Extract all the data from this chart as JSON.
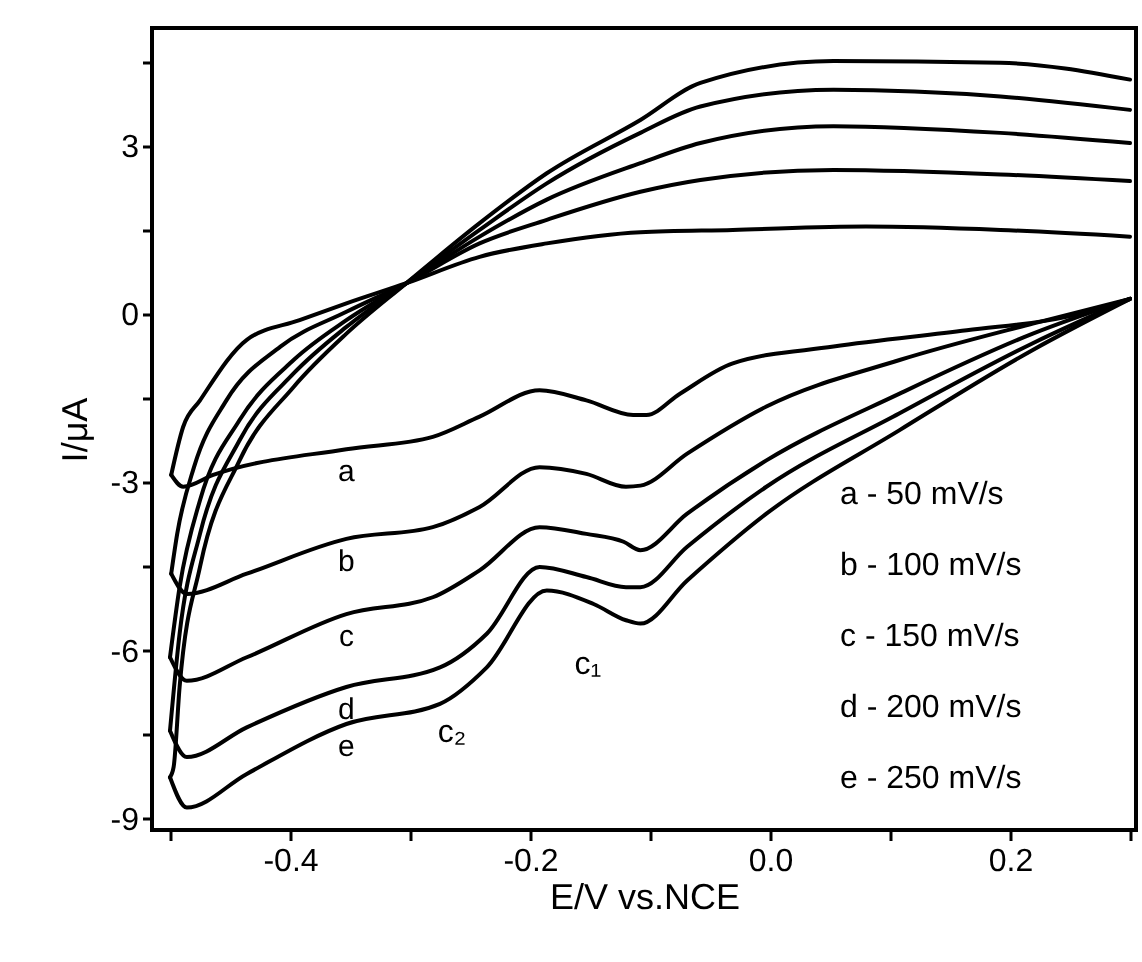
{
  "chart_data": {
    "type": "line",
    "xlabel": "E/V vs.NCE",
    "ylabel": "I/μA",
    "xlim": [
      -0.515,
      0.305
    ],
    "ylim": [
      -9.2,
      5.1
    ],
    "xticks": [
      {
        "value": -0.5,
        "label": null
      },
      -0.4,
      {
        "value": -0.3,
        "label": null
      },
      -0.2,
      {
        "value": -0.1,
        "label": null
      },
      {
        "value": 0,
        "label": "0.0"
      },
      {
        "value": 0.1,
        "label": null
      },
      0.2,
      {
        "value": 0.3,
        "label": null
      }
    ],
    "yticks": [
      -9,
      {
        "value": -7.5,
        "label": null
      },
      -6,
      {
        "value": -4.5,
        "label": null
      },
      -3,
      {
        "value": -1.5,
        "label": null
      },
      0,
      {
        "value": 1.5,
        "label": null
      },
      3,
      {
        "value": 4.5,
        "label": null
      }
    ],
    "series": [
      {
        "name": "a",
        "color": "#000000",
        "x": [
          -0.499,
          -0.489,
          -0.464,
          -0.353,
          -0.281,
          -0.242,
          -0.192,
          -0.153,
          -0.114,
          -0.103,
          -0.075,
          -0.031,
          0.053,
          0.164,
          0.247,
          0.3
        ],
        "values": [
          -2.87,
          -3.08,
          -2.87,
          -2.41,
          -2.19,
          -1.83,
          -1.36,
          -1.54,
          -1.8,
          -1.8,
          -1.42,
          -0.88,
          -0.58,
          -0.29,
          -0.05,
          0.27
        ]
      },
      {
        "color": "#000000",
        "x": [
          -0.499,
          -0.489,
          -0.475,
          -0.436,
          -0.392,
          -0.353,
          -0.303,
          -0.242,
          -0.186,
          -0.108,
          -0.031,
          0.08,
          0.192,
          0.3
        ],
        "values": [
          -2.87,
          -2.01,
          -1.54,
          -0.46,
          -0.11,
          0.19,
          0.55,
          1.02,
          1.26,
          1.46,
          1.5,
          1.56,
          1.5,
          1.38
        ]
      },
      {
        "name": "b",
        "color": "#000000",
        "x": [
          -0.499,
          -0.486,
          -0.436,
          -0.353,
          -0.281,
          -0.242,
          -0.192,
          -0.153,
          -0.12,
          -0.108,
          -0.069,
          -0.003,
          0.108,
          0.219,
          0.3
        ],
        "values": [
          -4.63,
          -4.99,
          -4.63,
          -4.01,
          -3.8,
          -3.44,
          -2.73,
          -2.85,
          -3.08,
          -3.06,
          -2.49,
          -1.65,
          -0.82,
          -0.17,
          0.27
        ]
      },
      {
        "color": "#000000",
        "x": [
          -0.499,
          -0.494,
          -0.48,
          -0.453,
          -0.408,
          -0.353,
          -0.303,
          -0.242,
          -0.186,
          -0.108,
          -0.058,
          0.053,
          0.192,
          0.3
        ],
        "values": [
          -4.63,
          -3.92,
          -2.73,
          -1.54,
          -0.58,
          0.04,
          0.55,
          1.26,
          1.68,
          2.18,
          2.39,
          2.57,
          2.49,
          2.37
        ]
      },
      {
        "name": "c",
        "color": "#000000",
        "x": [
          -0.5,
          -0.486,
          -0.436,
          -0.353,
          -0.281,
          -0.242,
          -0.192,
          -0.153,
          -0.122,
          -0.108,
          -0.069,
          -0.003,
          0.108,
          0.219,
          0.3
        ],
        "values": [
          -6.12,
          -6.54,
          -6.12,
          -5.35,
          -5.05,
          -4.57,
          -3.8,
          -3.92,
          -4.06,
          -4.21,
          -3.56,
          -2.61,
          -1.42,
          -0.35,
          0.27
        ]
      },
      {
        "color": "#000000",
        "x": [
          -0.5,
          -0.492,
          -0.475,
          -0.442,
          -0.397,
          -0.353,
          -0.303,
          -0.242,
          -0.186,
          -0.108,
          -0.058,
          0.053,
          0.192,
          0.3
        ],
        "values": [
          -6.12,
          -4.87,
          -3.32,
          -1.89,
          -0.82,
          -0.11,
          0.55,
          1.38,
          2.04,
          2.69,
          3.05,
          3.35,
          3.23,
          3.05
        ]
      },
      {
        "name": "d",
        "color": "#000000",
        "x": [
          -0.5,
          -0.486,
          -0.436,
          -0.353,
          -0.275,
          -0.236,
          -0.192,
          -0.153,
          -0.12,
          -0.108,
          -0.069,
          -0.003,
          0.108,
          0.219,
          0.3
        ],
        "values": [
          -7.43,
          -7.9,
          -7.37,
          -6.65,
          -6.3,
          -5.7,
          -4.51,
          -4.69,
          -4.87,
          -4.87,
          -4.15,
          -3.08,
          -1.77,
          -0.52,
          0.27
        ]
      },
      {
        "color": "#000000",
        "x": [
          -0.5,
          -0.492,
          -0.475,
          -0.442,
          -0.397,
          -0.353,
          -0.303,
          -0.242,
          -0.186,
          -0.108,
          -0.058,
          0.053,
          0.192,
          0.3
        ],
        "values": [
          -7.43,
          -5.7,
          -3.92,
          -2.25,
          -1.06,
          -0.23,
          0.55,
          1.5,
          2.33,
          3.23,
          3.7,
          4.0,
          3.88,
          3.64
        ]
      },
      {
        "name": "e",
        "color": "#000000",
        "x": [
          -0.5,
          -0.486,
          -0.436,
          -0.353,
          -0.275,
          -0.236,
          -0.186,
          -0.147,
          -0.12,
          -0.108,
          -0.069,
          -0.003,
          0.108,
          0.219,
          0.3
        ],
        "values": [
          -8.26,
          -8.8,
          -8.2,
          -7.31,
          -6.95,
          -6.3,
          -4.93,
          -5.17,
          -5.46,
          -5.52,
          -4.75,
          -3.56,
          -2.07,
          -0.64,
          0.27
        ]
      },
      {
        "color": "#000000",
        "x": [
          -0.5,
          -0.497,
          -0.492,
          -0.475,
          -0.442,
          -0.397,
          -0.353,
          -0.303,
          -0.242,
          -0.186,
          -0.108,
          -0.058,
          0.053,
          0.192,
          0.3
        ],
        "values": [
          -8.26,
          -8.08,
          -6.65,
          -4.51,
          -2.61,
          -1.3,
          -0.35,
          0.55,
          1.62,
          2.51,
          3.46,
          4.12,
          4.51,
          4.48,
          4.18
        ]
      }
    ],
    "annotations": [
      "c₁",
      "c₂",
      "a - 50 mV/s",
      "b - 100 mV/s",
      "c - 150 mV/s",
      "d - 200 mV/s",
      "e - 250 mV/s"
    ]
  }
}
